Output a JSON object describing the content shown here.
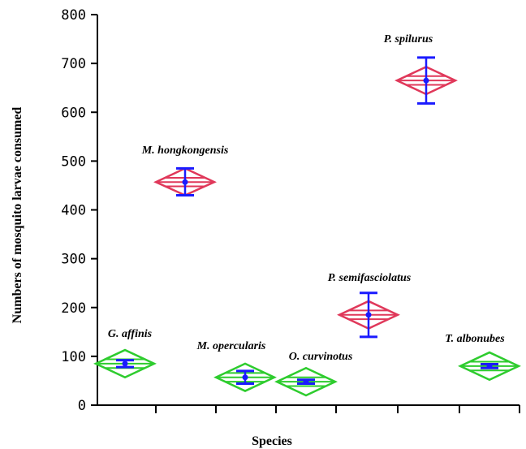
{
  "chart_data": {
    "type": "scatter",
    "title": "",
    "xlabel": "Species",
    "ylabel": "Numbers of mosquito larvae consumed",
    "ylim": [
      0,
      800
    ],
    "yticks": [
      0,
      100,
      200,
      300,
      400,
      500,
      600,
      700,
      800
    ],
    "grid": false,
    "legend": "none",
    "categories": [
      "G. affinis",
      "M. hongkongensis",
      "M. opercularis",
      "O. curvinotus",
      "P. semifasciolatus",
      "P. spilurus",
      "T. albonubes"
    ],
    "series": [
      {
        "points": [
          {
            "species": "G. affinis",
            "mean": 85,
            "err_low": 78,
            "err_high": 92,
            "ci_low": 57,
            "ci_high": 113,
            "group": "green"
          },
          {
            "species": "M. hongkongensis",
            "mean": 457,
            "err_low": 430,
            "err_high": 485,
            "ci_low": 430,
            "ci_high": 485,
            "group": "red"
          },
          {
            "species": "M. opercularis",
            "mean": 57,
            "err_low": 44,
            "err_high": 70,
            "ci_low": 29,
            "ci_high": 85,
            "group": "green"
          },
          {
            "species": "O. curvinotus",
            "mean": 48,
            "err_low": 44,
            "err_high": 52,
            "ci_low": 20,
            "ci_high": 76,
            "group": "green"
          },
          {
            "species": "P. semifasciolatus",
            "mean": 185,
            "err_low": 140,
            "err_high": 230,
            "ci_low": 157,
            "ci_high": 213,
            "group": "red"
          },
          {
            "species": "P. spilurus",
            "mean": 665,
            "err_low": 618,
            "err_high": 712,
            "ci_low": 637,
            "ci_high": 693,
            "group": "red"
          },
          {
            "species": "T. albonubes",
            "mean": 80,
            "err_low": 76,
            "err_high": 84,
            "ci_low": 52,
            "ci_high": 108,
            "group": "green"
          }
        ]
      }
    ],
    "colors": {
      "red_group": "#e0385a",
      "green_group": "#2ecc2e",
      "error_bar": "#1a1aff",
      "axis": "#000000"
    }
  }
}
